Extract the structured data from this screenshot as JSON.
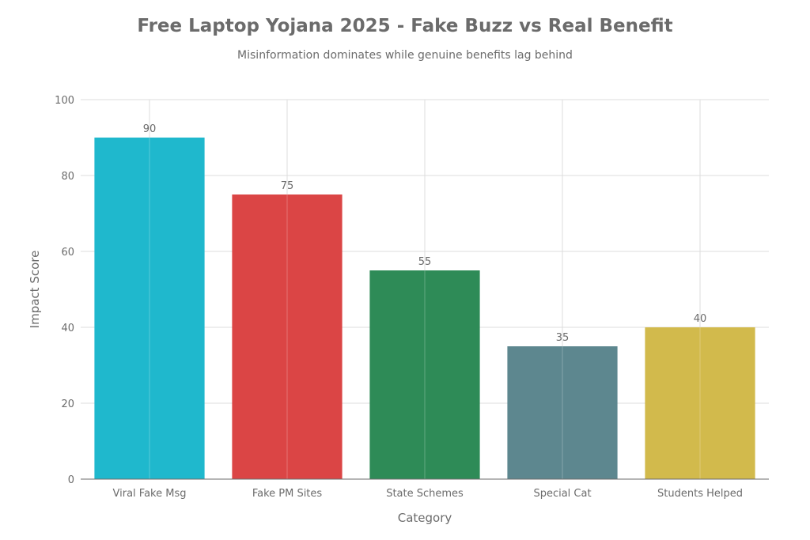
{
  "chart_data": {
    "type": "bar",
    "title": "Free Laptop Yojana 2025 - Fake Buzz vs Real Benefit",
    "subtitle": "Misinformation dominates while genuine benefits lag behind",
    "xlabel": "Category",
    "ylabel": "Impact Score",
    "categories": [
      "Viral Fake Msg",
      "Fake PM Sites",
      "State Schemes",
      "Special Cat",
      "Students Helped"
    ],
    "values": [
      90,
      75,
      55,
      35,
      40
    ],
    "colors": [
      "#1FB8CD",
      "#DB4545",
      "#2E8B57",
      "#5D878F",
      "#D2BA4C"
    ],
    "ylim": [
      0,
      100
    ],
    "yticks": [
      0,
      20,
      40,
      60,
      80,
      100
    ],
    "grid": true,
    "data_labels": true
  }
}
